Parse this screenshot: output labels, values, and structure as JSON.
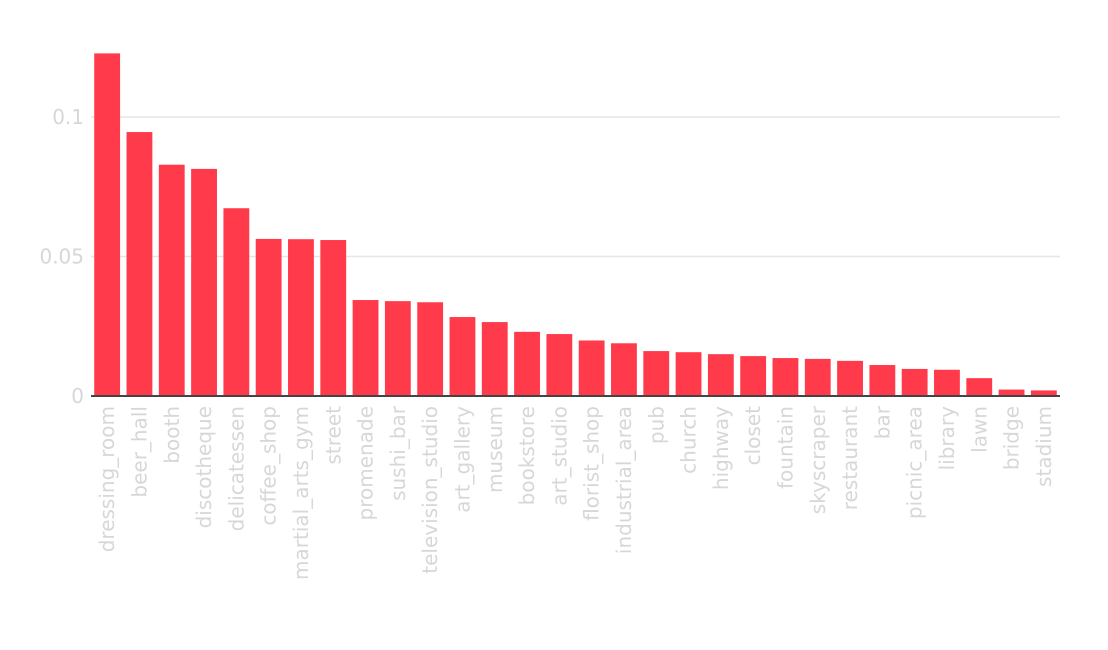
{
  "chart_data": {
    "type": "bar",
    "title": "",
    "xlabel": "",
    "ylabel": "",
    "ylim": [
      0,
      0.123
    ],
    "yticks": [
      {
        "value": 0,
        "label": "0"
      },
      {
        "value": 0.05,
        "label": "0.05"
      },
      {
        "value": 0.1,
        "label": "0.1"
      }
    ],
    "grid": true,
    "legend": "none",
    "bar_color": "#ff3b4b",
    "categories": [
      "dressing_room",
      "beer_hall",
      "booth",
      "discotheque",
      "delicatessen",
      "coffee_shop",
      "martial_arts_gym",
      "street",
      "promenade",
      "sushi_bar",
      "television_studio",
      "art_gallery",
      "museum",
      "bookstore",
      "art_studio",
      "florist_shop",
      "industrial_area",
      "pub",
      "church",
      "highway",
      "closet",
      "fountain",
      "skyscraper",
      "restaurant",
      "bar",
      "picnic_area",
      "library",
      "lawn",
      "bridge",
      "stadium"
    ],
    "values": [
      0.1228,
      0.0946,
      0.0829,
      0.0814,
      0.0673,
      0.0563,
      0.0562,
      0.0559,
      0.0344,
      0.034,
      0.0336,
      0.0283,
      0.0265,
      0.023,
      0.0222,
      0.0199,
      0.0189,
      0.0161,
      0.0157,
      0.015,
      0.0143,
      0.0136,
      0.0133,
      0.0126,
      0.0111,
      0.0097,
      0.0094,
      0.0064,
      0.0023,
      0.002
    ]
  }
}
